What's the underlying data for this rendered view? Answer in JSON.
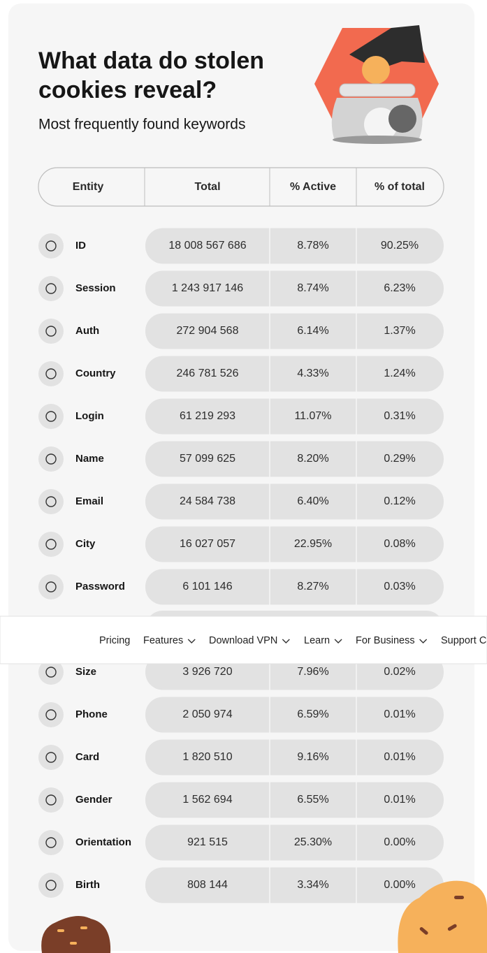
{
  "header": {
    "title_lines": [
      "What data do stolen",
      "cookies reveal?"
    ],
    "subtitle": "Most frequently found keywords"
  },
  "table": {
    "columns": [
      "Entity",
      "Total",
      "% Active",
      "% of total"
    ],
    "rows": [
      [
        "ID",
        "18 008 567 686",
        "8.78%",
        "90.25%"
      ],
      [
        "Session",
        "1 243 917 146",
        "8.74%",
        "6.23%"
      ],
      [
        "Auth",
        "272 904 568",
        "6.14%",
        "1.37%"
      ],
      [
        "Country",
        "246 781 526",
        "4.33%",
        "1.24%"
      ],
      [
        "Login",
        "61 219 293",
        "11.07%",
        "0.31%"
      ],
      [
        "Name",
        "57 099 625",
        "8.20%",
        "0.29%"
      ],
      [
        "Email",
        "24 584 738",
        "6.40%",
        "0.12%"
      ],
      [
        "City",
        "16 027 057",
        "22.95%",
        "0.08%"
      ],
      [
        "Password",
        "6 101 146",
        "8.27%",
        "0.03%"
      ],
      [
        "Size",
        "3 926 720",
        "7.96%",
        "0.02%"
      ],
      [
        "Phone",
        "2 050 974",
        "6.59%",
        "0.01%"
      ],
      [
        "Card",
        "1 820 510",
        "9.16%",
        "0.01%"
      ],
      [
        "Gender",
        "1 562 694",
        "6.55%",
        "0.01%"
      ],
      [
        "Orientation",
        "921 515",
        "25.30%",
        "0.00%"
      ],
      [
        "Birth",
        "808 144",
        "3.34%",
        "0.00%"
      ]
    ]
  },
  "nav": {
    "items": [
      "Pricing",
      "Features",
      "Download VPN",
      "Learn",
      "For Business",
      "Support C"
    ]
  }
}
